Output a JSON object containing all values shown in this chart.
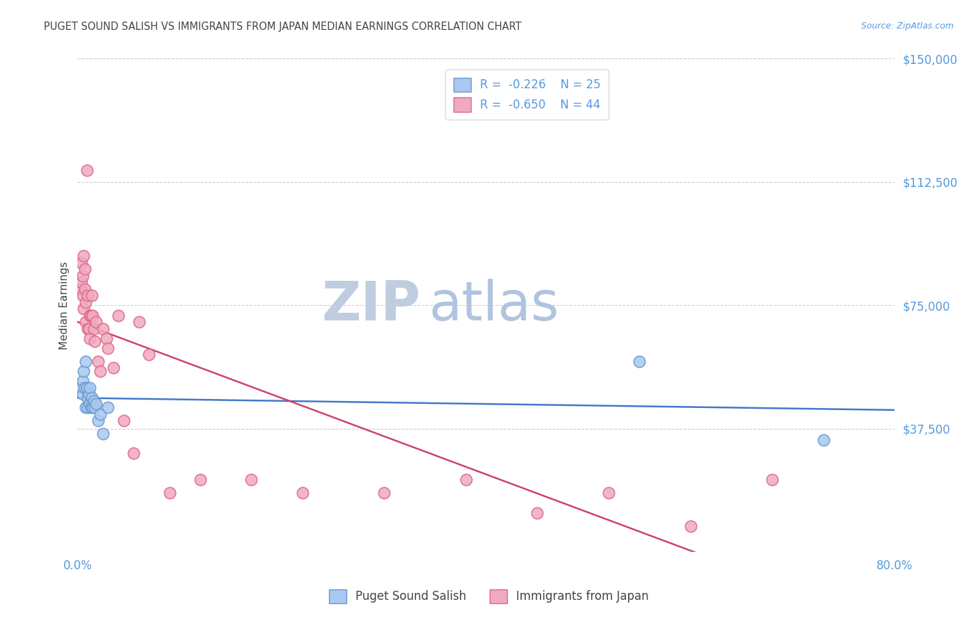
{
  "title": "PUGET SOUND SALISH VS IMMIGRANTS FROM JAPAN MEDIAN EARNINGS CORRELATION CHART",
  "source": "Source: ZipAtlas.com",
  "ylabel": "Median Earnings",
  "xlim": [
    0.0,
    0.8
  ],
  "ylim": [
    0,
    150000
  ],
  "yticks": [
    0,
    37500,
    75000,
    112500,
    150000
  ],
  "ytick_labels": [
    "",
    "$37,500",
    "$75,000",
    "$112,500",
    "$150,000"
  ],
  "xticks": [
    0.0,
    0.1,
    0.2,
    0.3,
    0.4,
    0.5,
    0.6,
    0.7,
    0.8
  ],
  "xtick_labels": [
    "0.0%",
    "",
    "",
    "",
    "",
    "",
    "",
    "",
    "80.0%"
  ],
  "bottom_legend_blue": "Puget Sound Salish",
  "bottom_legend_pink": "Immigrants from Japan",
  "blue_color": "#aac8f0",
  "pink_color": "#f0aac0",
  "blue_edge": "#6699cc",
  "pink_edge": "#dd6688",
  "blue_line_color": "#4477cc",
  "pink_line_color": "#cc4466",
  "axis_color": "#5599dd",
  "grid_color": "#ccccdd",
  "title_color": "#444444",
  "watermark_zip_color": "#c0cce8",
  "watermark_atlas_color": "#a8c4e8",
  "blue_x": [
    0.004,
    0.005,
    0.005,
    0.006,
    0.007,
    0.008,
    0.008,
    0.009,
    0.01,
    0.01,
    0.011,
    0.012,
    0.012,
    0.013,
    0.014,
    0.015,
    0.016,
    0.017,
    0.018,
    0.02,
    0.022,
    0.025,
    0.03,
    0.55,
    0.73
  ],
  "blue_y": [
    50000,
    52000,
    48000,
    55000,
    50000,
    58000,
    44000,
    50000,
    47000,
    44000,
    48000,
    50000,
    45000,
    44000,
    47000,
    44000,
    46000,
    44000,
    45000,
    40000,
    42000,
    36000,
    44000,
    58000,
    34000
  ],
  "pink_x": [
    0.003,
    0.004,
    0.004,
    0.005,
    0.005,
    0.006,
    0.006,
    0.007,
    0.007,
    0.008,
    0.008,
    0.009,
    0.01,
    0.01,
    0.011,
    0.012,
    0.012,
    0.013,
    0.014,
    0.015,
    0.016,
    0.017,
    0.018,
    0.02,
    0.022,
    0.025,
    0.028,
    0.03,
    0.035,
    0.04,
    0.045,
    0.055,
    0.06,
    0.07,
    0.09,
    0.12,
    0.17,
    0.22,
    0.3,
    0.38,
    0.45,
    0.52,
    0.6,
    0.68
  ],
  "pink_y": [
    80000,
    88000,
    82000,
    78000,
    84000,
    90000,
    74000,
    86000,
    80000,
    76000,
    70000,
    116000,
    78000,
    68000,
    68000,
    72000,
    65000,
    72000,
    78000,
    72000,
    68000,
    64000,
    70000,
    58000,
    55000,
    68000,
    65000,
    62000,
    56000,
    72000,
    40000,
    30000,
    70000,
    60000,
    18000,
    22000,
    22000,
    18000,
    18000,
    22000,
    12000,
    18000,
    8000,
    22000
  ]
}
